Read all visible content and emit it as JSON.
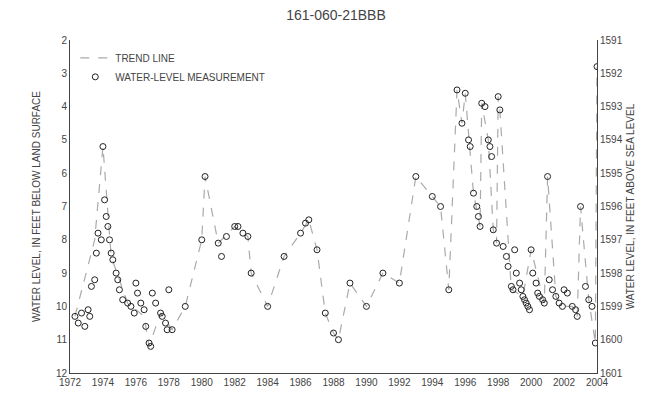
{
  "chart_data": {
    "type": "scatter",
    "title": "161-060-21BBB",
    "y_label": "WATER LEVEL, IN FEET BELOW LAND SURFACE",
    "y2_label": "WATER LEVEL, IN FEET ABOVE SEA LEVEL",
    "xlim": [
      1972,
      2004
    ],
    "xticks": [
      1972,
      1974,
      1976,
      1978,
      1980,
      1982,
      1984,
      1986,
      1988,
      1990,
      1992,
      1994,
      1996,
      1998,
      2000,
      2002,
      2004
    ],
    "ylim": [
      12,
      2
    ],
    "yticks": [
      2,
      3,
      4,
      5,
      6,
      7,
      8,
      9,
      10,
      11,
      12
    ],
    "y2lim": [
      1601,
      1591
    ],
    "y2ticks": [
      1601,
      1600,
      1599,
      1598,
      1597,
      1596,
      1595,
      1594,
      1593,
      1592,
      1591
    ],
    "grid": false,
    "legend": "upper left",
    "series": [
      {
        "name": "TREND LINE",
        "type": "line",
        "line_style": "dashed",
        "color": "#aaaaaa",
        "x": [
          1972.3,
          1973.0,
          1973.5,
          1974.0,
          1974.5,
          1975.5,
          1976.5,
          1976.8,
          1977.5,
          1978.2,
          1979.0,
          1980.0,
          1980.2,
          1981.0,
          1982.0,
          1982.8,
          1983.0,
          1984.0,
          1985.0,
          1986.0,
          1986.5,
          1987.0,
          1987.5,
          1988.0,
          1988.3,
          1989.0,
          1990.0,
          1991.0,
          1992.0,
          1993.0,
          1994.0,
          1994.5,
          1995.0,
          1995.5,
          1995.8,
          1996.0,
          1996.5,
          1996.9,
          1997.0,
          1997.4,
          1997.7,
          1997.9,
          1998.0,
          1998.1,
          1998.8,
          1999.5,
          2000.0,
          2000.8,
          2001.0,
          2001.5,
          2001.9,
          2002.5,
          2002.8,
          2003.0,
          2003.5,
          2003.9,
          2004.0
        ],
        "values": [
          10.3,
          9.0,
          8.0,
          5.2,
          8.5,
          9.9,
          10.3,
          11.2,
          10.2,
          10.7,
          10.0,
          8.0,
          6.1,
          8.1,
          7.6,
          7.9,
          9.0,
          10.0,
          8.5,
          7.8,
          7.4,
          8.3,
          10.2,
          10.8,
          11.0,
          9.3,
          10.0,
          9.0,
          9.3,
          6.1,
          6.7,
          7.0,
          9.5,
          3.5,
          4.5,
          3.6,
          6.6,
          7.6,
          3.9,
          5.0,
          7.7,
          8.1,
          3.7,
          4.1,
          9.5,
          9.7,
          8.3,
          9.9,
          6.1,
          9.7,
          10.0,
          10.0,
          10.3,
          7.0,
          9.8,
          11.1,
          2.8
        ]
      },
      {
        "name": "WATER-LEVEL MEASUREMENT",
        "type": "scatter",
        "marker": "open circle",
        "color": "#222222",
        "x": [
          1972.3,
          1972.5,
          1972.7,
          1972.9,
          1973.1,
          1973.2,
          1973.3,
          1973.5,
          1973.6,
          1973.7,
          1973.9,
          1974.0,
          1974.1,
          1974.2,
          1974.3,
          1974.4,
          1974.5,
          1974.6,
          1974.8,
          1974.9,
          1975.0,
          1975.2,
          1975.5,
          1975.7,
          1975.9,
          1976.0,
          1976.1,
          1976.3,
          1976.5,
          1976.6,
          1976.8,
          1976.9,
          1977.0,
          1977.2,
          1977.5,
          1977.6,
          1977.8,
          1977.9,
          1978.0,
          1978.2,
          1979.0,
          1980.0,
          1980.2,
          1981.0,
          1981.2,
          1981.5,
          1982.0,
          1982.2,
          1982.5,
          1982.8,
          1983.0,
          1984.0,
          1985.0,
          1986.0,
          1986.3,
          1986.5,
          1987.0,
          1987.5,
          1988.0,
          1988.3,
          1989.0,
          1990.0,
          1991.0,
          1992.0,
          1993.0,
          1994.0,
          1994.5,
          1995.0,
          1995.5,
          1995.8,
          1996.0,
          1996.2,
          1996.3,
          1996.5,
          1996.7,
          1996.8,
          1996.9,
          1997.0,
          1997.2,
          1997.4,
          1997.5,
          1997.6,
          1997.7,
          1997.9,
          1998.0,
          1998.1,
          1998.3,
          1998.5,
          1998.6,
          1998.8,
          1998.9,
          1999.0,
          1999.1,
          1999.3,
          1999.4,
          1999.5,
          1999.6,
          1999.7,
          1999.8,
          1999.9,
          2000.0,
          2000.1,
          2000.3,
          2000.4,
          2000.5,
          2000.7,
          2000.8,
          2001.0,
          2001.1,
          2001.3,
          2001.5,
          2001.7,
          2001.9,
          2002.0,
          2002.2,
          2002.5,
          2002.7,
          2002.8,
          2003.0,
          2003.3,
          2003.5,
          2003.7,
          2003.9,
          2004.0
        ],
        "values": [
          10.3,
          10.5,
          10.2,
          10.6,
          10.1,
          10.3,
          9.4,
          9.2,
          8.4,
          7.8,
          8.0,
          5.2,
          6.8,
          7.3,
          7.6,
          8.0,
          8.4,
          8.6,
          9.0,
          9.2,
          9.5,
          9.8,
          9.9,
          10.0,
          10.2,
          9.3,
          9.6,
          9.9,
          10.1,
          10.6,
          11.1,
          11.2,
          9.6,
          9.9,
          10.2,
          10.3,
          10.5,
          10.7,
          9.5,
          10.7,
          10.0,
          8.0,
          6.1,
          8.1,
          8.5,
          7.9,
          7.6,
          7.6,
          7.8,
          7.9,
          9.0,
          10.0,
          8.5,
          7.8,
          7.5,
          7.4,
          8.3,
          10.2,
          10.8,
          11.0,
          9.3,
          10.0,
          9.0,
          9.3,
          6.1,
          6.7,
          7.0,
          9.5,
          3.5,
          4.5,
          3.6,
          5.0,
          5.2,
          6.6,
          7.0,
          7.3,
          7.6,
          3.9,
          4.0,
          5.0,
          5.2,
          5.5,
          7.7,
          8.1,
          3.7,
          4.1,
          8.2,
          8.5,
          8.8,
          9.4,
          9.5,
          8.3,
          9.0,
          9.3,
          9.5,
          9.7,
          9.8,
          9.9,
          10.0,
          10.1,
          8.3,
          9.0,
          9.3,
          9.6,
          9.7,
          9.8,
          9.9,
          6.1,
          9.2,
          9.5,
          9.7,
          9.9,
          10.0,
          9.5,
          9.6,
          10.0,
          10.1,
          10.3,
          7.0,
          9.4,
          9.8,
          10.0,
          11.1,
          2.8
        ]
      }
    ]
  }
}
